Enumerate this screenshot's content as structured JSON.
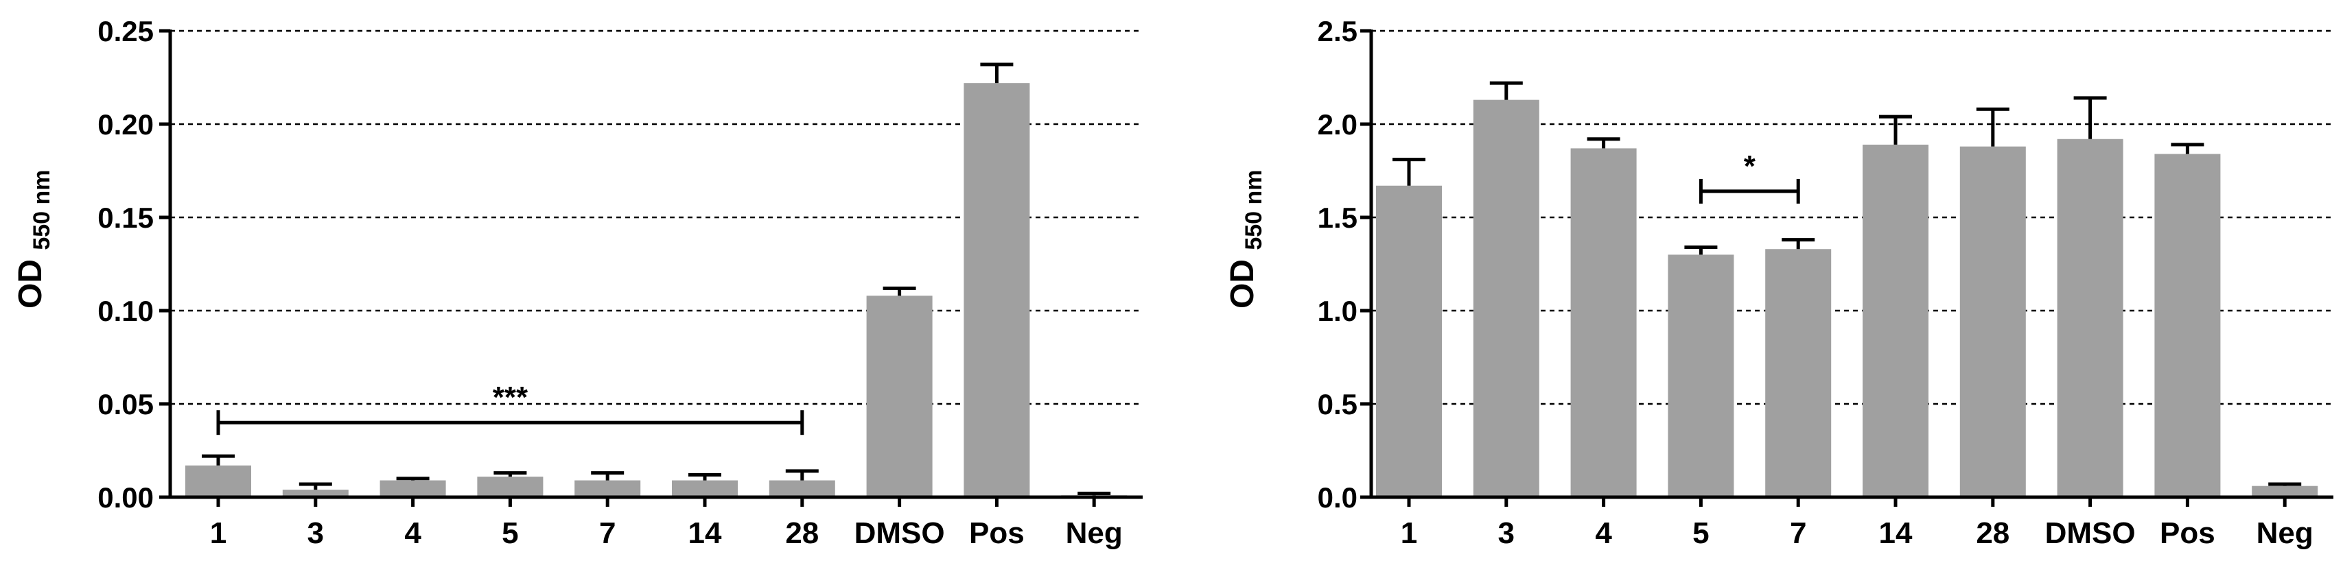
{
  "colors": {
    "bar": "#a0a0a0",
    "axis": "#000000",
    "grid": "#000000"
  },
  "chart_data": [
    {
      "type": "bar",
      "title": "",
      "xlabel": "",
      "ylabel": {
        "main": "OD",
        "sub": "550 nm"
      },
      "ylim": [
        0,
        0.25
      ],
      "yticks": [
        "0.00",
        "0.05",
        "0.10",
        "0.15",
        "0.20",
        "0.25"
      ],
      "grid": "horizontal dashed",
      "categories": [
        "1",
        "3",
        "4",
        "5",
        "7",
        "14",
        "28",
        "DMSO",
        "Pos",
        "Neg"
      ],
      "values": [
        0.017,
        0.004,
        0.009,
        0.011,
        0.009,
        0.009,
        0.009,
        0.108,
        0.222,
        0.001
      ],
      "errors": [
        0.005,
        0.003,
        0.001,
        0.002,
        0.004,
        0.003,
        0.005,
        0.004,
        0.01,
        0.001
      ],
      "annotations": [
        {
          "label": "***",
          "from": "1",
          "to": "28",
          "y": 0.04
        }
      ]
    },
    {
      "type": "bar",
      "title": "",
      "xlabel": "",
      "ylabel": {
        "main": "OD",
        "sub": "550 nm"
      },
      "ylim": [
        0,
        2.5
      ],
      "yticks": [
        "0.0",
        "0.5",
        "1.0",
        "1.5",
        "2.0",
        "2.5"
      ],
      "grid": "horizontal dashed",
      "categories": [
        "1",
        "3",
        "4",
        "5",
        "7",
        "14",
        "28",
        "DMSO",
        "Pos",
        "Neg"
      ],
      "values": [
        1.67,
        2.13,
        1.87,
        1.3,
        1.33,
        1.89,
        1.88,
        1.92,
        1.84,
        0.06
      ],
      "errors": [
        0.14,
        0.09,
        0.05,
        0.04,
        0.05,
        0.15,
        0.2,
        0.22,
        0.05,
        0.01
      ],
      "annotations": [
        {
          "label": "*",
          "from": "5",
          "to": "7",
          "y": 1.64
        }
      ]
    }
  ]
}
